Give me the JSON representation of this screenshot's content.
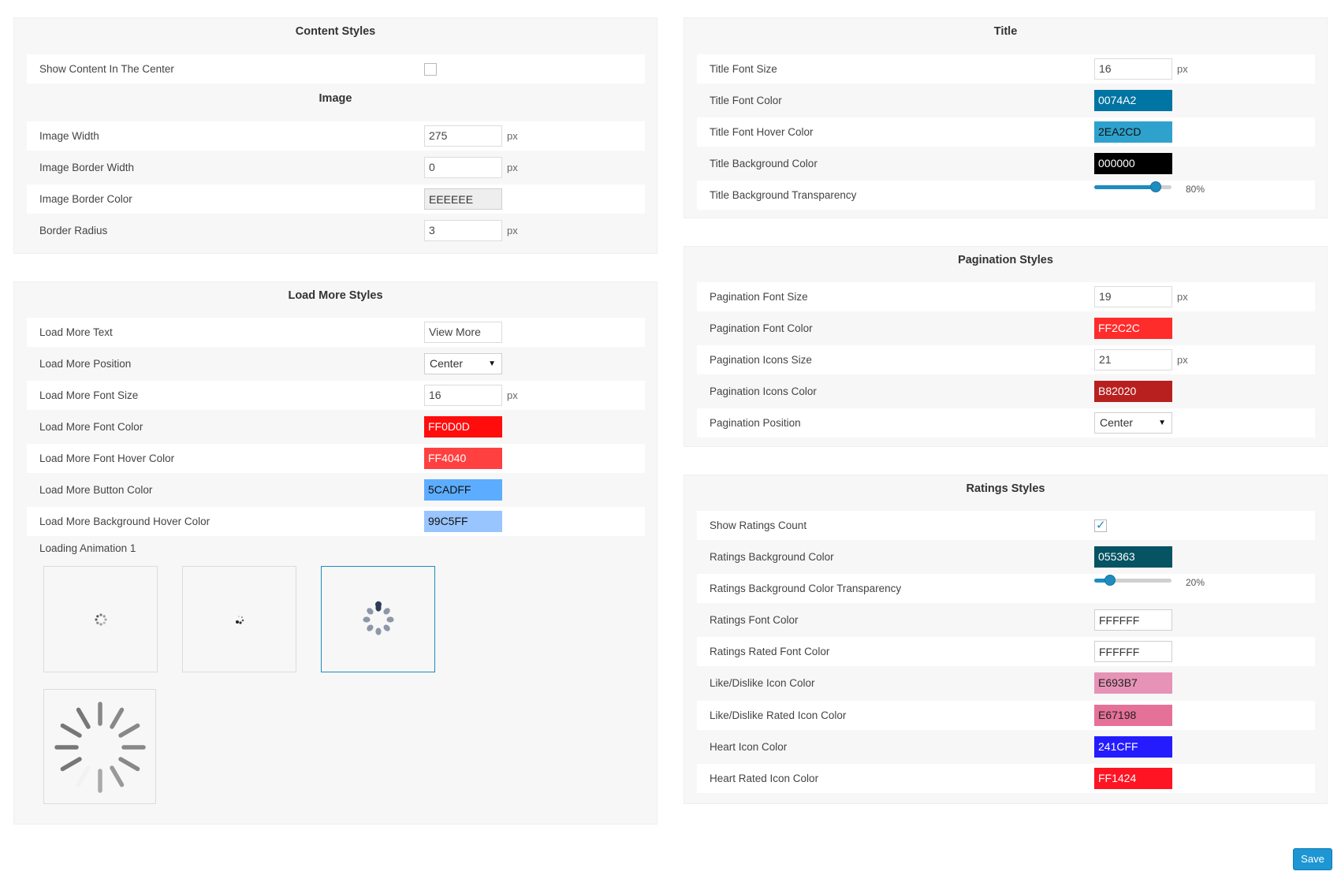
{
  "content_styles": {
    "title": "Content Styles",
    "show_center": {
      "label": "Show Content In The Center",
      "checked": false
    },
    "image_section_title": "Image",
    "image_width": {
      "label": "Image Width",
      "value": "275",
      "unit": "px"
    },
    "image_border_width": {
      "label": "Image Border Width",
      "value": "0",
      "unit": "px"
    },
    "image_border_color": {
      "label": "Image Border Color",
      "value": "EEEEEE",
      "color": "#EEEEEE"
    },
    "border_radius": {
      "label": "Border Radius",
      "value": "3",
      "unit": "px"
    }
  },
  "load_more": {
    "title": "Load More Styles",
    "text": {
      "label": "Load More Text",
      "value": "View More"
    },
    "position": {
      "label": "Load More Position",
      "value": "Center"
    },
    "font_size": {
      "label": "Load More Font Size",
      "value": "16",
      "unit": "px"
    },
    "font_color": {
      "label": "Load More Font Color",
      "value": "FF0D0D",
      "color": "#FF0D0D"
    },
    "font_hover_color": {
      "label": "Load More Font Hover Color",
      "value": "FF4040",
      "color": "#FF4040"
    },
    "button_color": {
      "label": "Load More Button Color",
      "value": "5CADFF",
      "color": "#5CADFF"
    },
    "bg_hover_color": {
      "label": "Load More Background Hover Color",
      "value": "99C5FF",
      "color": "#99C5FF"
    },
    "loading_animation_label": "Loading Animation 1",
    "selected_animation": 3
  },
  "title_section": {
    "title": "Title",
    "font_size": {
      "label": "Title Font Size",
      "value": "16",
      "unit": "px"
    },
    "font_color": {
      "label": "Title Font Color",
      "value": "0074A2",
      "color": "#0074A2"
    },
    "font_hover_color": {
      "label": "Title Font Hover Color",
      "value": "2EA2CD",
      "color": "#2EA2CD"
    },
    "bg_color": {
      "label": "Title Background Color",
      "value": "000000",
      "color": "#000000"
    },
    "bg_transparency": {
      "label": "Title Background Transparency",
      "value": "80%",
      "level": 0.8
    }
  },
  "pagination": {
    "title": "Pagination Styles",
    "font_size": {
      "label": "Pagination Font Size",
      "value": "19",
      "unit": "px"
    },
    "font_color": {
      "label": "Pagination Font Color",
      "value": "FF2C2C",
      "color": "#FF2C2C"
    },
    "icons_size": {
      "label": "Pagination Icons Size",
      "value": "21",
      "unit": "px"
    },
    "icons_color": {
      "label": "Pagination Icons Color",
      "value": "B82020",
      "color": "#B82020"
    },
    "position": {
      "label": "Pagination Position",
      "value": "Center"
    }
  },
  "ratings": {
    "title": "Ratings Styles",
    "show_count": {
      "label": "Show Ratings Count",
      "checked": true
    },
    "bg_color": {
      "label": "Ratings Background Color",
      "value": "055363",
      "color": "#055363"
    },
    "bg_transparency": {
      "label": "Ratings Background Color Transparency",
      "value": "20%",
      "level": 0.2
    },
    "font_color": {
      "label": "Ratings Font Color",
      "value": "FFFFFF",
      "color": "#FFFFFF"
    },
    "rated_font_color": {
      "label": "Ratings Rated Font Color",
      "value": "FFFFFF",
      "color": "#FFFFFF"
    },
    "like_icon_color": {
      "label": "Like/Dislike Icon Color",
      "value": "E693B7",
      "color": "#E693B7"
    },
    "like_rated_icon_color": {
      "label": "Like/Dislike Rated Icon Color",
      "value": "E67198",
      "color": "#E67198"
    },
    "heart_icon_color": {
      "label": "Heart Icon Color",
      "value": "241CFF",
      "color": "#241CFF"
    },
    "heart_rated_icon_color": {
      "label": "Heart Rated Icon Color",
      "value": "FF1424",
      "color": "#FF1424"
    }
  },
  "save_label": "Save"
}
